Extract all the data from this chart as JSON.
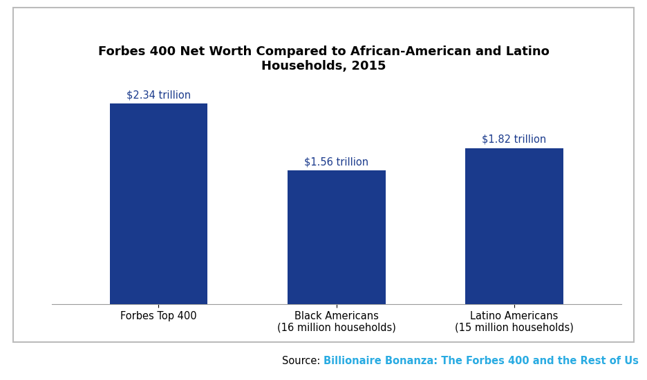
{
  "title": "Forbes 400 Net Worth Compared to African-American and Latino\nHouseholds, 2015",
  "categories": [
    "Forbes Top 400",
    "Black Americans\n(16 million households)",
    "Latino Americans\n(15 million households)"
  ],
  "values": [
    2.34,
    1.56,
    1.82
  ],
  "labels": [
    "$2.34 trillion",
    "$1.56 trillion",
    "$1.82 trillion"
  ],
  "bar_color": "#1a3a8c",
  "label_color": "#1a3a8c",
  "title_fontsize": 13,
  "label_fontsize": 10.5,
  "tick_fontsize": 10.5,
  "ylim": [
    0,
    2.75
  ],
  "source_prefix": "Source: ",
  "source_link_text": "Billionaire Bonanza: The Forbes 400 and the Rest of Us",
  "source_link_color": "#29abe2",
  "source_fontsize": 10.5,
  "background_color": "#ffffff",
  "border_color": "#bbbbbb"
}
